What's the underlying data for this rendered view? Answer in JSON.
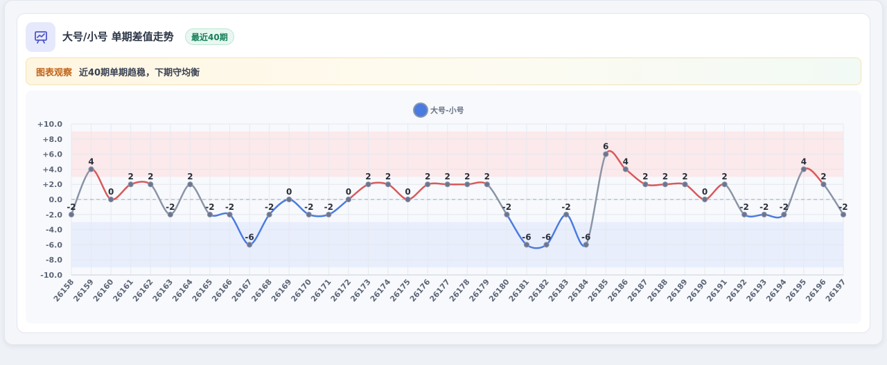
{
  "header": {
    "icon": "chart-presentation-icon",
    "title": "大号/小号 单期差值走势",
    "badge": "最近40期"
  },
  "insight": {
    "tag": "图表观察",
    "text": "近40期单期趋稳，下期守均衡"
  },
  "colors": {
    "up": "#d9595a",
    "down": "#4a7be0",
    "neutral": "#8a94a6",
    "band_high": "#fbe6e8",
    "band_low": "#e5ecfb"
  },
  "chart_data": {
    "type": "line",
    "title": "",
    "xlabel": "",
    "ylabel": "",
    "ylim": [
      -10,
      10
    ],
    "y_ticks": [
      "+10.0",
      "+8.0",
      "+6.0",
      "+4.0",
      "+2.0",
      "0.0",
      "-2.0",
      "-4.0",
      "-6.0",
      "-8.0",
      "-10.0"
    ],
    "bands": [
      {
        "from": 3,
        "to": 9,
        "tone": "high"
      },
      {
        "from": -9,
        "to": -3,
        "tone": "low"
      }
    ],
    "reference_line": 0,
    "legend_position": "top-center",
    "categories": [
      "26158",
      "26159",
      "26160",
      "26161",
      "26162",
      "26163",
      "26164",
      "26165",
      "26166",
      "26167",
      "26168",
      "26169",
      "26170",
      "26171",
      "26172",
      "26173",
      "26174",
      "26175",
      "26176",
      "26177",
      "26178",
      "26179",
      "26180",
      "26181",
      "26182",
      "26183",
      "26184",
      "26185",
      "26186",
      "26187",
      "26188",
      "26189",
      "26190",
      "26191",
      "26192",
      "26193",
      "26194",
      "26195",
      "26196",
      "26197"
    ],
    "series": [
      {
        "name": "大号-小号",
        "values": [
          -2,
          4,
          0,
          2,
          2,
          -2,
          2,
          -2,
          -2,
          -6,
          -2,
          0,
          -2,
          -2,
          0,
          2,
          2,
          0,
          2,
          2,
          2,
          2,
          -2,
          -6,
          -6,
          -2,
          -6,
          6,
          4,
          2,
          2,
          2,
          0,
          2,
          -2,
          -2,
          -2,
          4,
          2,
          -2
        ],
        "labels": [
          "-2",
          "4",
          "0",
          "2",
          "2",
          "-2",
          "2",
          "-2",
          "-2",
          "-6",
          "-2",
          "0",
          "-2",
          "-2",
          "0",
          "2",
          "2",
          "0",
          "2",
          "2",
          "2",
          "2",
          "-2",
          "-6",
          "-6",
          "-2",
          "-6",
          "6",
          "4",
          "2",
          "2",
          "2",
          "0",
          "2",
          "-2",
          "-2",
          "-2",
          "4",
          "2",
          "-2"
        ]
      }
    ]
  }
}
